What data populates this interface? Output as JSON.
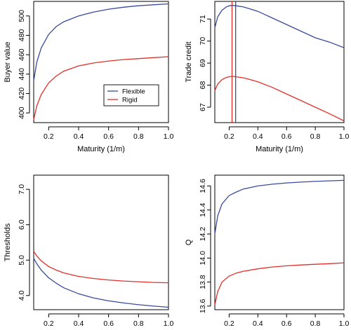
{
  "chart_data": [
    {
      "type": "line",
      "xlabel": "Maturity (1/m)",
      "ylabel": "Buyer value",
      "xlim": [
        0.1,
        1.0
      ],
      "ylim": [
        390,
        515
      ],
      "xticks": [
        0.2,
        0.4,
        0.6,
        0.8,
        1.0
      ],
      "xtick_labels": [
        "0.2",
        "0.4",
        "0.6",
        "0.8",
        "1.0"
      ],
      "yticks": [
        400,
        420,
        440,
        460,
        480,
        500
      ],
      "ytick_labels": [
        "400",
        "420",
        "440",
        "460",
        "480",
        "500"
      ],
      "legend": {
        "position": "center-right",
        "entries": [
          "Flexible",
          "Rigid"
        ]
      },
      "series": [
        {
          "name": "Flexible",
          "color": "#3a4a9e",
          "x": [
            0.1,
            0.12,
            0.15,
            0.2,
            0.25,
            0.3,
            0.4,
            0.5,
            0.6,
            0.7,
            0.8,
            0.9,
            1.0
          ],
          "values": [
            433,
            452,
            467,
            481,
            489,
            494,
            500,
            504,
            507,
            509,
            510.5,
            511.5,
            512.5
          ]
        },
        {
          "name": "Rigid",
          "color": "#e0302a",
          "x": [
            0.1,
            0.12,
            0.15,
            0.2,
            0.25,
            0.3,
            0.4,
            0.5,
            0.6,
            0.7,
            0.8,
            0.9,
            1.0
          ],
          "values": [
            393,
            407,
            419,
            431,
            438,
            443,
            448.5,
            451.5,
            453.5,
            455,
            456,
            457,
            458
          ]
        }
      ]
    },
    {
      "type": "line",
      "xlabel": "Maturity (1/m)",
      "ylabel": "Trade credit",
      "xlim": [
        0.1,
        1.0
      ],
      "ylim": [
        66.3,
        71.8
      ],
      "xticks": [
        0.2,
        0.4,
        0.6,
        0.8,
        1.0
      ],
      "xtick_labels": [
        "0.2",
        "0.4",
        "0.6",
        "0.8",
        "1.0"
      ],
      "yticks": [
        67,
        68,
        69,
        70,
        71
      ],
      "ytick_labels": [
        "67",
        "68",
        "69",
        "70",
        "71"
      ],
      "vlines": [
        {
          "x": 0.22,
          "color": "#e0302a"
        },
        {
          "x": 0.245,
          "color": "#3a4a9e"
        }
      ],
      "series": [
        {
          "name": "Flexible",
          "color": "#3a4a9e",
          "x": [
            0.1,
            0.12,
            0.15,
            0.18,
            0.2,
            0.22,
            0.25,
            0.3,
            0.35,
            0.4,
            0.5,
            0.6,
            0.7,
            0.8,
            0.9,
            1.0
          ],
          "values": [
            70.6,
            71.1,
            71.4,
            71.55,
            71.6,
            71.62,
            71.6,
            71.55,
            71.45,
            71.35,
            71.05,
            70.75,
            70.45,
            70.15,
            69.95,
            69.7
          ]
        },
        {
          "name": "Rigid",
          "color": "#e0302a",
          "x": [
            0.1,
            0.12,
            0.15,
            0.18,
            0.2,
            0.22,
            0.25,
            0.3,
            0.35,
            0.4,
            0.5,
            0.6,
            0.7,
            0.8,
            0.9,
            1.0
          ],
          "values": [
            67.75,
            68.05,
            68.25,
            68.35,
            68.38,
            68.4,
            68.38,
            68.33,
            68.25,
            68.15,
            67.9,
            67.6,
            67.3,
            67.0,
            66.7,
            66.38
          ]
        }
      ]
    },
    {
      "type": "line",
      "xlabel": "Maturity (1/m)",
      "ylabel": "Thresholds",
      "xlim": [
        0.1,
        1.0
      ],
      "ylim": [
        3.6,
        7.4
      ],
      "xticks": [
        0.2,
        0.4,
        0.6,
        0.8,
        1.0
      ],
      "xtick_labels": [
        "0.2",
        "0.4",
        "0.6",
        "0.8",
        "1.0"
      ],
      "yticks": [
        4.0,
        5.0,
        6.0,
        7.0
      ],
      "ytick_labels": [
        "4.0",
        "5.0",
        "6.0",
        "7.0"
      ],
      "series": [
        {
          "name": "Flexible",
          "color": "#3a4a9e",
          "x": [
            0.1,
            0.12,
            0.15,
            0.2,
            0.25,
            0.3,
            0.4,
            0.5,
            0.6,
            0.7,
            0.8,
            0.9,
            1.0
          ],
          "values": [
            5.05,
            4.9,
            4.72,
            4.5,
            4.35,
            4.22,
            4.05,
            3.93,
            3.85,
            3.79,
            3.74,
            3.7,
            3.67
          ]
        },
        {
          "name": "Rigid",
          "color": "#e0302a",
          "x": [
            0.1,
            0.12,
            0.15,
            0.2,
            0.25,
            0.3,
            0.4,
            0.5,
            0.6,
            0.7,
            0.8,
            0.9,
            1.0
          ],
          "values": [
            5.25,
            5.12,
            4.98,
            4.82,
            4.72,
            4.64,
            4.54,
            4.48,
            4.44,
            4.41,
            4.39,
            4.37,
            4.36
          ]
        }
      ]
    },
    {
      "type": "line",
      "xlabel": "Maturity (1/m)",
      "ylabel": "Q",
      "xlim": [
        0.1,
        1.0
      ],
      "ylim": [
        13.57,
        14.69
      ],
      "xticks": [
        0.2,
        0.4,
        0.6,
        0.8,
        1.0
      ],
      "xtick_labels": [
        "0.2",
        "0.4",
        "0.6",
        "0.8",
        "1.0"
      ],
      "yticks": [
        13.6,
        13.8,
        14.0,
        14.2,
        14.4,
        14.6
      ],
      "ytick_labels": [
        "13.6",
        "13.8",
        "14.0",
        "14.2",
        "14.4",
        "14.6"
      ],
      "series": [
        {
          "name": "Flexible",
          "color": "#3a4a9e",
          "x": [
            0.1,
            0.12,
            0.15,
            0.2,
            0.25,
            0.3,
            0.4,
            0.5,
            0.6,
            0.7,
            0.8,
            0.9,
            1.0
          ],
          "values": [
            14.2,
            14.35,
            14.45,
            14.52,
            14.55,
            14.575,
            14.6,
            14.615,
            14.625,
            14.632,
            14.638,
            14.643,
            14.647
          ]
        },
        {
          "name": "Rigid",
          "color": "#e0302a",
          "x": [
            0.1,
            0.12,
            0.15,
            0.2,
            0.25,
            0.3,
            0.4,
            0.5,
            0.6,
            0.7,
            0.8,
            0.9,
            1.0
          ],
          "values": [
            13.61,
            13.72,
            13.8,
            13.85,
            13.875,
            13.89,
            13.91,
            13.925,
            13.935,
            13.942,
            13.948,
            13.953,
            13.96
          ]
        }
      ]
    }
  ]
}
